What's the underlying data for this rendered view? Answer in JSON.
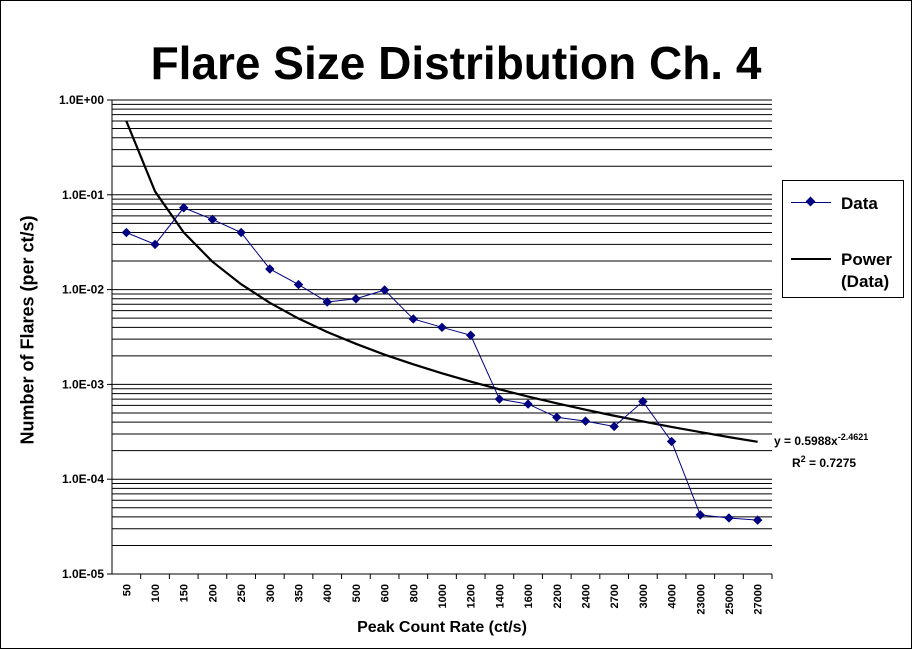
{
  "chart_data": {
    "type": "line",
    "title": "Flare Size Distribution Ch. 4",
    "xlabel": "Peak Count Rate (ct/s)",
    "ylabel": "Number of Flares (per ct/s)",
    "categories": [
      "50",
      "100",
      "150",
      "200",
      "250",
      "300",
      "350",
      "400",
      "500",
      "600",
      "800",
      "1000",
      "1200",
      "1400",
      "1600",
      "2200",
      "2400",
      "2700",
      "3000",
      "4000",
      "23000",
      "25000",
      "27000"
    ],
    "y_scale": "log",
    "ylim": [
      1e-05,
      1
    ],
    "y_ticks": [
      "1.0E+00",
      "1.0E-01",
      "1.0E-02",
      "1.0E-03",
      "1.0E-04",
      "1.0E-05"
    ],
    "grid": true,
    "legend_position": "right",
    "series": [
      {
        "name": "Data",
        "color": "#000080",
        "marker": "diamond",
        "values": [
          0.04,
          0.03,
          0.073,
          0.055,
          0.04,
          0.0165,
          0.0113,
          0.0074,
          0.008,
          0.0099,
          0.0049,
          0.004,
          0.0033,
          0.0007,
          0.00062,
          0.00045,
          0.00041,
          0.00036,
          0.00066,
          0.00025,
          4.2e-05,
          3.9e-05,
          3.7e-05
        ]
      },
      {
        "name": "Power (Data)",
        "color": "#000000",
        "type": "trendline",
        "values": [
          0.5988,
          0.1085,
          0.04,
          0.0197,
          0.0114,
          0.00725,
          0.00495,
          0.00357,
          0.00268,
          0.00206,
          0.00163,
          0.00131,
          0.00107,
          0.000887,
          0.000745,
          0.000632,
          0.000541,
          0.000467,
          0.000407,
          0.000356,
          0.000314,
          0.000278,
          0.000248
        ]
      }
    ],
    "annotations": {
      "equation_prefix": "y = 0.5988x",
      "equation_exponent": "-2.4621",
      "r2_prefix": "R",
      "r2_exponent": "2",
      "r2_value": " = 0.7275"
    },
    "legend": {
      "data_label": "Data",
      "power_label_line1": "Power",
      "power_label_line2": "(Data)"
    }
  }
}
